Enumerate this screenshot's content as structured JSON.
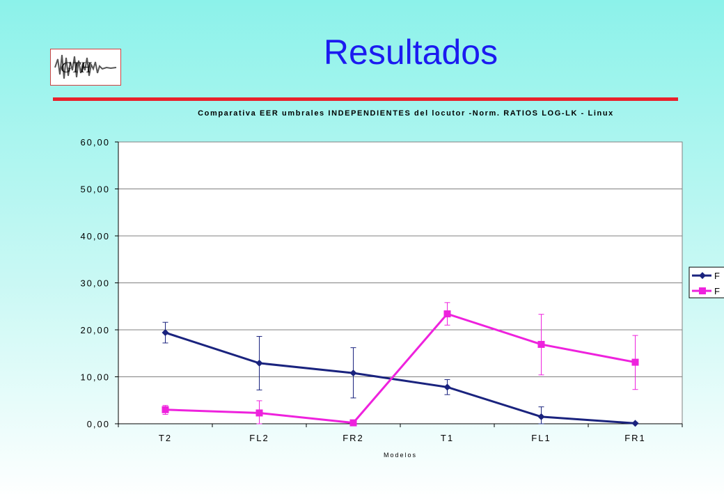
{
  "slide": {
    "title": "Resultados",
    "logo_text": "GTH",
    "colors": {
      "title": "#1b1bf0",
      "rule": "#e8212c"
    }
  },
  "chart_data": {
    "type": "line",
    "title": "Comparativa EER umbrales INDEPENDIENTES del locutor -Norm. RATIOS LOG-LK - Linux",
    "xlabel": "Modelos",
    "ylabel": "",
    "categories": [
      "T2",
      "FL2",
      "FR2",
      "T1",
      "FL1",
      "FR1"
    ],
    "ylim": [
      0,
      60
    ],
    "yticks": [
      "0,00",
      "10,00",
      "20,00",
      "30,00",
      "40,00",
      "50,00",
      "60,00"
    ],
    "grid": true,
    "legend_position": "right (clipped)",
    "series": [
      {
        "name": "F",
        "color": "#1a237e",
        "marker": "diamond",
        "values": [
          19.4,
          12.9,
          10.8,
          7.8,
          1.5,
          0.1
        ],
        "error_low": [
          17.2,
          7.2,
          5.5,
          6.2,
          -0.5,
          0.0
        ],
        "error_high": [
          21.6,
          18.6,
          16.2,
          9.4,
          3.6,
          0.3
        ]
      },
      {
        "name": "F",
        "color": "#ee22dd",
        "marker": "square",
        "values": [
          3.0,
          2.3,
          0.2,
          23.4,
          16.9,
          13.1
        ],
        "error_low": [
          2.0,
          -0.2,
          0.0,
          21.0,
          10.4,
          7.3
        ],
        "error_high": [
          3.9,
          4.9,
          0.5,
          25.8,
          23.3,
          18.8
        ]
      }
    ]
  }
}
